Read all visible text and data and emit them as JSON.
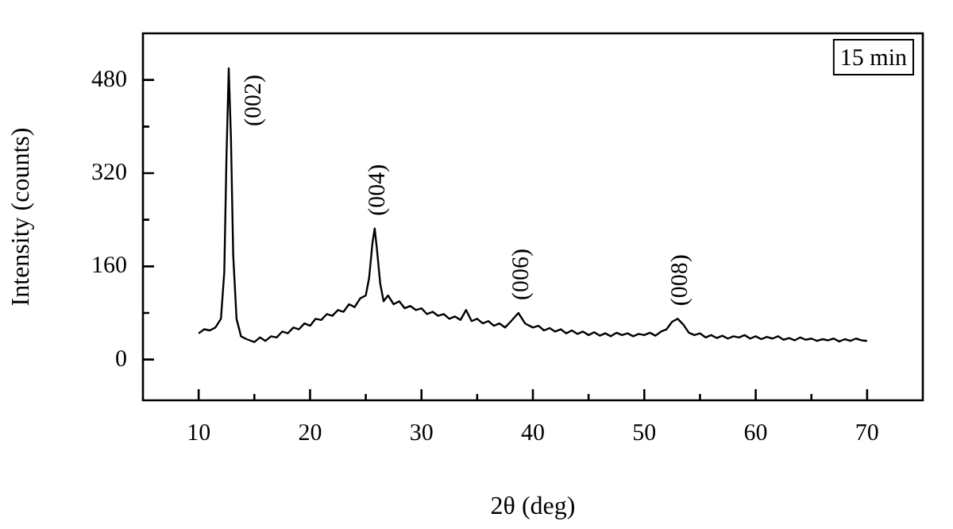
{
  "chart_data": {
    "type": "line",
    "xlabel": "2θ (deg)",
    "ylabel": "Intensity (counts)",
    "xlim": [
      5,
      75
    ],
    "xticks": [
      10,
      {
        "value": 15,
        "label": null
      },
      20,
      {
        "value": 25,
        "label": null
      },
      30,
      {
        "value": 35,
        "label": null
      },
      40,
      {
        "value": 45,
        "label": null
      },
      50,
      {
        "value": 55,
        "label": null
      },
      60,
      {
        "value": 65,
        "label": null
      },
      70
    ],
    "ylim": [
      -70,
      560
    ],
    "yticks": [
      0,
      {
        "value": 80,
        "label": null
      },
      160,
      {
        "value": 240,
        "label": null
      },
      320,
      {
        "value": 400,
        "label": null
      },
      480
    ],
    "marker": "none",
    "legend": false,
    "annotations": [
      "15 min",
      {
        "text": "(002)",
        "x": 12.7,
        "y": 500
      },
      {
        "text": "(004)",
        "x": 25.8,
        "y": 225
      },
      {
        "text": "(006)",
        "x": 38.7,
        "y": 80
      },
      {
        "text": "(008)",
        "x": 53,
        "y": 70
      }
    ],
    "series": [
      {
        "color": "#000000",
        "x": [
          10,
          10.5,
          11,
          11.5,
          12,
          12.3,
          12.5,
          12.7,
          12.9,
          13.1,
          13.4,
          13.8,
          14.3,
          15,
          15.5,
          16,
          16.5,
          17,
          17.5,
          18,
          18.5,
          19,
          19.5,
          20,
          20.5,
          21,
          21.5,
          22,
          22.5,
          23,
          23.5,
          24,
          24.5,
          25,
          25.3,
          25.6,
          25.8,
          26,
          26.3,
          26.6,
          27,
          27.5,
          28,
          28.5,
          29,
          29.5,
          30,
          30.5,
          31,
          31.5,
          32,
          32.5,
          33,
          33.5,
          34,
          34.5,
          35,
          35.5,
          36,
          36.5,
          37,
          37.5,
          38,
          38.7,
          39.3,
          40,
          40.5,
          41,
          41.5,
          42,
          42.5,
          43,
          43.5,
          44,
          44.5,
          45,
          45.5,
          46,
          46.5,
          47,
          47.5,
          48,
          48.5,
          49,
          49.5,
          50,
          50.5,
          51,
          51.5,
          52,
          52.5,
          53,
          53.5,
          54,
          54.5,
          55,
          55.5,
          56,
          56.5,
          57,
          57.5,
          58,
          58.5,
          59,
          59.5,
          60,
          60.5,
          61,
          61.5,
          62,
          62.5,
          63,
          63.5,
          64,
          64.5,
          65,
          65.5,
          66,
          66.5,
          67,
          67.5,
          68,
          68.5,
          69,
          69.5,
          70
        ],
        "values": [
          45,
          52,
          50,
          55,
          70,
          150,
          350,
          500,
          380,
          180,
          70,
          40,
          35,
          30,
          38,
          32,
          40,
          38,
          48,
          45,
          55,
          52,
          62,
          58,
          70,
          68,
          78,
          75,
          85,
          82,
          95,
          90,
          105,
          110,
          140,
          200,
          225,
          190,
          130,
          100,
          110,
          95,
          100,
          88,
          92,
          85,
          88,
          78,
          82,
          75,
          78,
          70,
          74,
          68,
          85,
          66,
          70,
          62,
          66,
          58,
          62,
          55,
          65,
          80,
          62,
          55,
          58,
          50,
          54,
          48,
          52,
          45,
          50,
          44,
          48,
          42,
          47,
          41,
          45,
          40,
          46,
          42,
          45,
          40,
          44,
          42,
          46,
          41,
          48,
          52,
          65,
          70,
          60,
          46,
          42,
          45,
          38,
          42,
          37,
          41,
          36,
          40,
          38,
          42,
          36,
          40,
          35,
          39,
          36,
          40,
          34,
          37,
          33,
          38,
          34,
          36,
          32,
          35,
          33,
          36,
          31,
          35,
          32,
          36,
          33,
          32
        ]
      }
    ]
  }
}
